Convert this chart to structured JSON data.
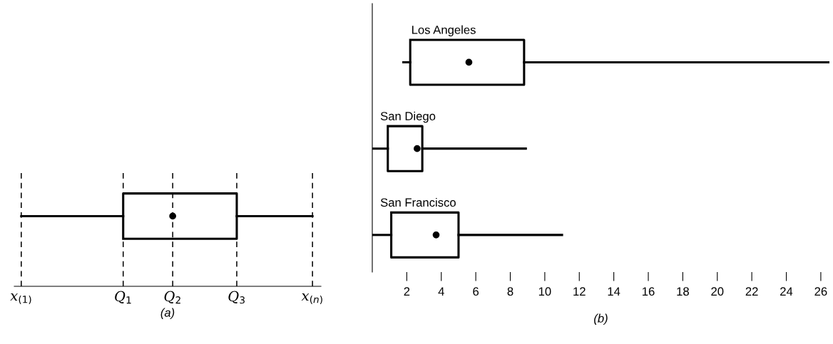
{
  "chart_data": [
    {
      "type": "other",
      "xlabel": "(a)",
      "annotations": [
        "x$_{(1)}$",
        "Q$_{1}$",
        "Q$_{2}$",
        "Q$_{3}$",
        "x$_{(n)}$"
      ]
    },
    {
      "type": "box",
      "xlabel": "(b)",
      "orientation": "horizontal",
      "categories": [
        "Los Angeles",
        "San Diego",
        "San Francisco"
      ],
      "boxes": [
        {
          "low": 1.8,
          "q1": 2.2,
          "median": 5.6,
          "q3": 8.8,
          "high": 26.5
        },
        {
          "low": 0,
          "q1": 0.9,
          "median": 2.6,
          "q3": 2.9,
          "high": 8.9
        },
        {
          "low": 0,
          "q1": 1.1,
          "median": 3.7,
          "q3": 5.0,
          "high": 11.0
        }
      ],
      "xlim": [
        0,
        26.5
      ],
      "xticks": [
        2,
        4,
        6,
        8,
        10,
        12,
        14,
        16,
        18,
        20,
        22,
        24,
        26
      ],
      "tick_labels": "x",
      "grid": false,
      "legend": false
    }
  ]
}
